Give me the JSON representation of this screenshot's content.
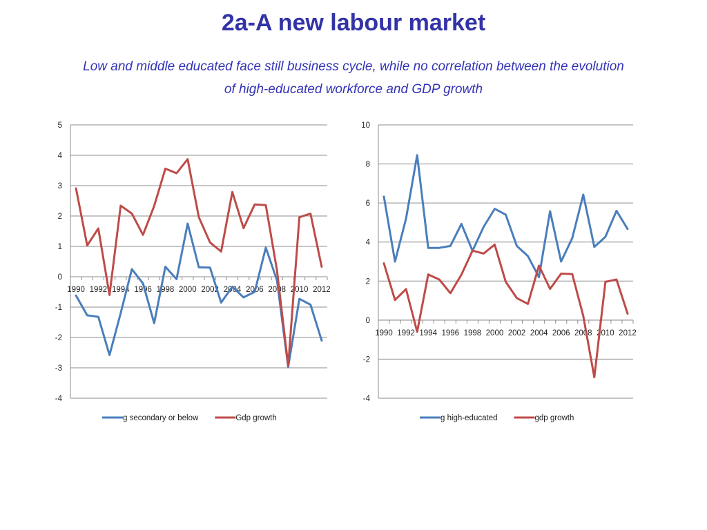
{
  "page": {
    "title": "2a-A new labour market",
    "subtitle": "Low and middle educated face still business cycle, while no correlation between the evolution of high-educated workforce and GDP growth"
  },
  "chart_data": [
    {
      "type": "line",
      "x": [
        1990,
        1991,
        1992,
        1993,
        1994,
        1995,
        1996,
        1997,
        1998,
        1999,
        2000,
        2001,
        2002,
        2003,
        2004,
        2005,
        2006,
        2007,
        2008,
        2009,
        2010,
        2011,
        2012
      ],
      "x_tick_labels": [
        "1990",
        "1992",
        "1994",
        "1996",
        "1998",
        "2000",
        "2002",
        "2004",
        "2006",
        "2008",
        "2010",
        "2012"
      ],
      "ylim": [
        -4,
        5
      ],
      "y_ticks": [
        -4,
        -3,
        -2,
        -1,
        0,
        1,
        2,
        3,
        4,
        5
      ],
      "grid": true,
      "legend_position": "bottom",
      "series": [
        {
          "name": "g secondary or below",
          "color": "#4a7ebb",
          "values": [
            -0.62,
            -1.27,
            -1.32,
            -2.58,
            -1.2,
            0.25,
            -0.22,
            -1.53,
            0.33,
            -0.08,
            1.75,
            0.31,
            0.3,
            -0.85,
            -0.33,
            -0.68,
            -0.5,
            0.96,
            -0.12,
            -2.97,
            -0.73,
            -0.92,
            -2.1
          ]
        },
        {
          "name": "Gdp growth",
          "color": "#be4b48",
          "values": [
            2.91,
            1.03,
            1.59,
            -0.6,
            2.34,
            2.08,
            1.38,
            2.33,
            3.56,
            3.41,
            3.87,
            1.96,
            1.13,
            0.83,
            2.79,
            1.6,
            2.38,
            2.36,
            0.21,
            -2.93,
            1.96,
            2.08,
            0.33
          ]
        }
      ]
    },
    {
      "type": "line",
      "x": [
        1990,
        1991,
        1992,
        1993,
        1994,
        1995,
        1996,
        1997,
        1998,
        1999,
        2000,
        2001,
        2002,
        2003,
        2004,
        2005,
        2006,
        2007,
        2008,
        2009,
        2010,
        2011,
        2012
      ],
      "x_tick_labels": [
        "1990",
        "1992",
        "1994",
        "1996",
        "1998",
        "2000",
        "2002",
        "2004",
        "2006",
        "2008",
        "2010",
        "2012"
      ],
      "ylim": [
        -4,
        10
      ],
      "y_ticks": [
        -4,
        -2,
        0,
        2,
        4,
        6,
        8,
        10
      ],
      "grid": true,
      "legend_position": "bottom",
      "series": [
        {
          "name": "g high-educated",
          "color": "#4a7ebb",
          "values": [
            6.33,
            3.0,
            5.2,
            8.45,
            3.7,
            3.7,
            3.8,
            4.93,
            3.55,
            4.77,
            5.7,
            5.4,
            3.8,
            3.28,
            2.2,
            5.58,
            3.0,
            4.2,
            6.43,
            3.75,
            4.27,
            5.6,
            4.67
          ]
        },
        {
          "name": "gdp growth",
          "color": "#be4b48",
          "values": [
            2.91,
            1.03,
            1.59,
            -0.6,
            2.34,
            2.08,
            1.38,
            2.33,
            3.56,
            3.41,
            3.87,
            1.96,
            1.13,
            0.83,
            2.79,
            1.6,
            2.38,
            2.36,
            0.21,
            -2.93,
            1.96,
            2.08,
            0.33
          ]
        }
      ]
    }
  ]
}
